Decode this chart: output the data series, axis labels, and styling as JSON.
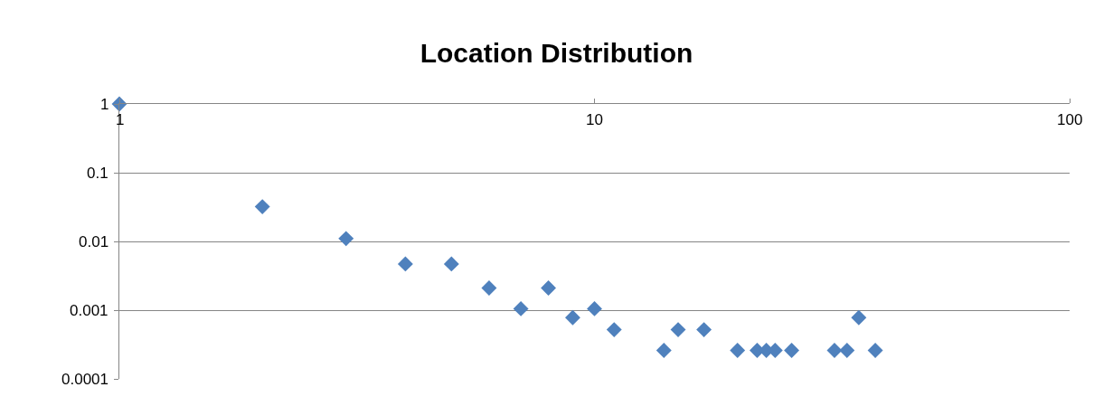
{
  "chart_data": {
    "type": "scatter",
    "title": "Location Distribution",
    "x": [
      1,
      2,
      3,
      4,
      5,
      6,
      7,
      8,
      9,
      10,
      11,
      14,
      15,
      17,
      20,
      22,
      23,
      24,
      26,
      32,
      34,
      36,
      39
    ],
    "values": [
      1,
      0.032,
      0.011,
      0.0047,
      0.0047,
      0.0021,
      0.00105,
      0.0021,
      0.00078,
      0.00105,
      0.00052,
      0.00026,
      0.00052,
      0.00052,
      0.00026,
      0.00026,
      0.00026,
      0.00026,
      0.00026,
      0.00026,
      0.00026,
      0.00078,
      0.00026
    ],
    "color": "#4f81bd",
    "marker": "diamond",
    "log": "xy",
    "xlim": [
      1,
      100
    ],
    "xticks": [
      1,
      10,
      100
    ],
    "ylim": [
      0.0001,
      1
    ],
    "yticks": [
      0.0001,
      0.001,
      0.01,
      0.1,
      1
    ],
    "grid": "y"
  }
}
